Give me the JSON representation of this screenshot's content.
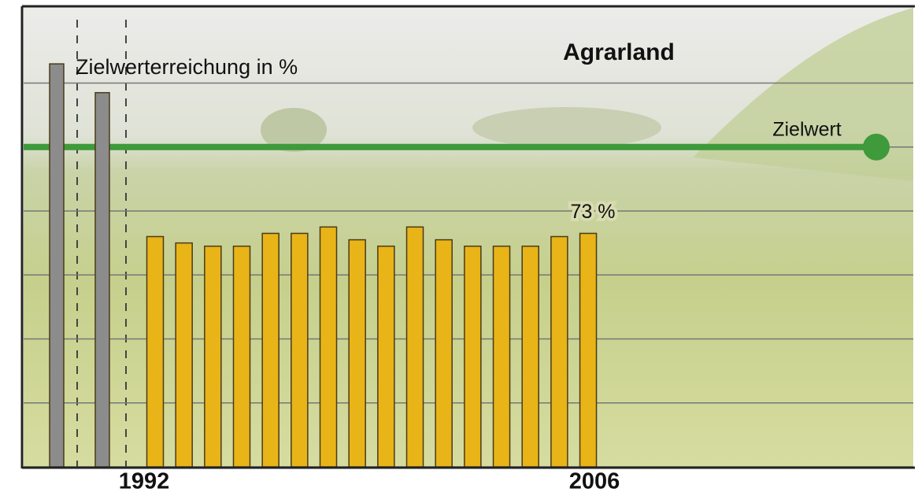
{
  "chart_data": {
    "type": "bar",
    "title": "Agrarland",
    "subtitle": "Zielwerterreichung in %",
    "categories": [
      null,
      null,
      "1992",
      null,
      null,
      null,
      null,
      null,
      null,
      null,
      null,
      null,
      null,
      null,
      null,
      null,
      null,
      "2006"
    ],
    "series": [
      {
        "color": "#8c8c8c",
        "values": [
          126,
          117,
          null,
          null,
          null,
          null,
          null,
          null,
          null,
          null,
          null,
          null,
          null,
          null,
          null,
          null,
          null,
          null
        ]
      },
      {
        "color": "#e8b418",
        "values": [
          null,
          null,
          72,
          70,
          69,
          69,
          73,
          73,
          75,
          71,
          69,
          75,
          71,
          69,
          69,
          69,
          72,
          73
        ],
        "value_labels": [
          null,
          null,
          null,
          null,
          null,
          null,
          null,
          null,
          null,
          null,
          null,
          null,
          null,
          null,
          null,
          null,
          null,
          "73 %"
        ]
      }
    ],
    "target": {
      "label": "Zielwert",
      "value": 100,
      "color": "#3e9a3a"
    },
    "ylim": [
      0,
      144
    ],
    "yticks": [
      0,
      20,
      40,
      60,
      80,
      100,
      120
    ],
    "grid": true
  }
}
